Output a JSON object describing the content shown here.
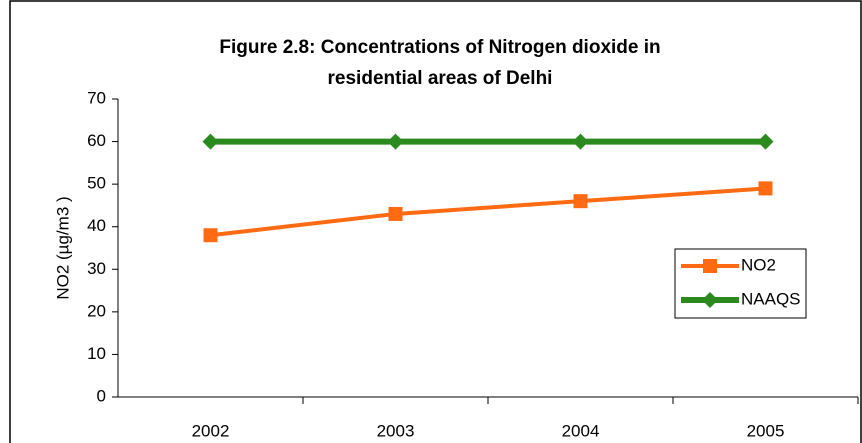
{
  "chart_data": {
    "type": "line",
    "title": [
      "Figure 2.8: Concentrations of Nitrogen dioxide in",
      "residential areas of Delhi"
    ],
    "y_label": "NO2 (µg/m3 )",
    "categories": [
      "2002",
      "2003",
      "2004",
      "2005"
    ],
    "series": [
      {
        "name": "NO2",
        "color": "#ff6a13",
        "marker": "square",
        "values": [
          38,
          43,
          46,
          49
        ]
      },
      {
        "name": "NAAQS",
        "color": "#2a8a1e",
        "marker": "diamond",
        "values": [
          60,
          60,
          60,
          60
        ]
      }
    ],
    "ylim": [
      0,
      70
    ],
    "yticks": [
      0,
      10,
      20,
      30,
      40,
      50,
      60,
      70
    ],
    "grid": false,
    "legend": "right"
  }
}
